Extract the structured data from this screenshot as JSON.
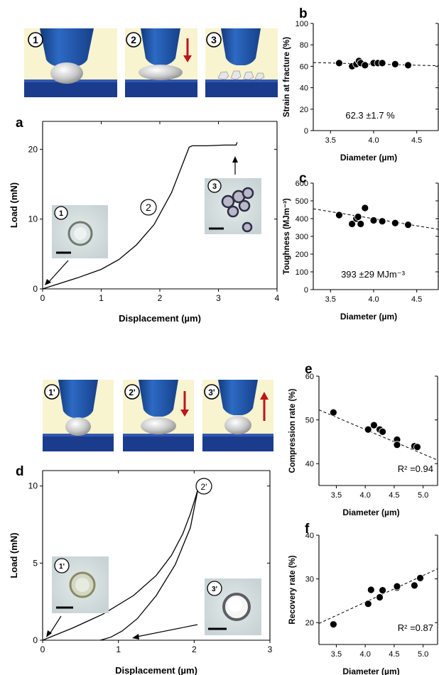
{
  "colors": {
    "tip": "#1e4fa0",
    "tip_dark": "#123a7c",
    "stage": "#1b3c8c",
    "stage_top": "#3358b0",
    "background_panel": "#f8f4cf",
    "arrow": "#c0141c",
    "line": "#000000"
  },
  "panels": {
    "a": "a",
    "b": "b",
    "c": "c",
    "d": "d",
    "e": "e",
    "f": "f"
  },
  "steps_top": [
    "1",
    "2",
    "3"
  ],
  "steps_bottom": [
    "1'",
    "2'",
    "3'"
  ],
  "chart_data": [
    {
      "panel": "a",
      "type": "line",
      "xlabel": "Displacement (µm)",
      "ylabel": "Load (mN)",
      "xlim": [
        0,
        4
      ],
      "ylim": [
        0,
        24
      ],
      "xticks": [
        "0",
        "1",
        "2",
        "3",
        "4"
      ],
      "yticks": [
        "0",
        "10",
        "20"
      ],
      "series": [
        {
          "x": [
            0,
            0.3,
            0.6,
            1.0,
            1.3,
            1.6,
            1.9,
            2.2,
            2.5,
            2.55,
            2.8,
            3.1,
            3.3,
            3.32
          ],
          "y": [
            0,
            0.8,
            1.6,
            2.8,
            4.2,
            6.3,
            9.2,
            13.8,
            20.3,
            20.5,
            20.5,
            20.6,
            20.6,
            21.0
          ]
        }
      ],
      "annotations": [
        "1",
        "2",
        "3"
      ]
    },
    {
      "panel": "b",
      "type": "scatter",
      "xlabel": "Diameter (µm)",
      "ylabel": "Strain at fracture (%)",
      "xlim": [
        3.3,
        4.75
      ],
      "ylim": [
        0,
        100
      ],
      "xticks": [
        "3.5",
        "4.0",
        "4.5"
      ],
      "yticks": [
        "0",
        "20",
        "40",
        "60",
        "80",
        "100"
      ],
      "x": [
        3.6,
        3.75,
        3.8,
        3.83,
        3.85,
        3.9,
        4.0,
        4.05,
        4.1,
        4.25,
        4.4
      ],
      "y": [
        63,
        60,
        62,
        65,
        63,
        61,
        63,
        63,
        63,
        62,
        61
      ],
      "trend": {
        "x": [
          3.3,
          4.75
        ],
        "y": [
          63.5,
          60.5
        ]
      },
      "annotation": "62.3 ±1.7 %"
    },
    {
      "panel": "c",
      "type": "scatter",
      "xlabel": "Diameter (µm)",
      "ylabel": "Toughness (MJm⁻³)",
      "xlim": [
        3.3,
        4.75
      ],
      "ylim": [
        0,
        600
      ],
      "xticks": [
        "3.5",
        "4.0",
        "4.5"
      ],
      "yticks": [
        "0",
        "100",
        "200",
        "300",
        "400",
        "500",
        "600"
      ],
      "x": [
        3.6,
        3.75,
        3.8,
        3.82,
        3.85,
        3.9,
        4.0,
        4.1,
        4.25,
        4.4
      ],
      "y": [
        420,
        370,
        400,
        410,
        370,
        460,
        390,
        385,
        375,
        365
      ],
      "trend": {
        "x": [
          3.3,
          4.75
        ],
        "y": [
          455,
          340
        ]
      },
      "annotation": "393 ±29 MJm⁻³"
    },
    {
      "panel": "d",
      "type": "line",
      "xlabel": "Displacement (µm)",
      "ylabel": "Load (mN)",
      "xlim": [
        0,
        3
      ],
      "ylim": [
        0,
        11
      ],
      "xticks": [
        "0",
        "1",
        "2",
        "3"
      ],
      "yticks": [
        "0",
        "5",
        "10"
      ],
      "series": [
        {
          "name": "",
          "x": [
            0,
            0.4,
            0.8,
            1.2,
            1.5,
            1.7,
            1.85,
            1.95,
            2.02,
            2.05
          ],
          "y": [
            0,
            0.8,
            1.7,
            2.9,
            4.2,
            5.5,
            6.9,
            8.2,
            9.3,
            9.8
          ]
        },
        {
          "name": "",
          "x": [
            2.05,
            1.95,
            1.75,
            1.5,
            1.25,
            1.05,
            0.9,
            0.8,
            0.76
          ],
          "y": [
            9.8,
            7.3,
            4.9,
            2.9,
            1.4,
            0.6,
            0.2,
            0.05,
            0
          ]
        }
      ],
      "annotations": [
        "1'",
        "2'",
        "3'"
      ]
    },
    {
      "panel": "e",
      "type": "scatter",
      "xlabel": "Diameter (µm)",
      "ylabel": "Compression rate (%)",
      "xlim": [
        3.2,
        5.25
      ],
      "ylim": [
        35,
        60
      ],
      "xticks": [
        "3.5",
        "4.0",
        "4.5",
        "5.0"
      ],
      "yticks": [
        "40",
        "50",
        "60"
      ],
      "x": [
        3.45,
        4.05,
        4.15,
        4.25,
        4.3,
        4.55,
        4.55,
        4.85,
        4.9
      ],
      "y": [
        51.7,
        47.8,
        48.8,
        47.8,
        47.3,
        45.5,
        44.3,
        44.0,
        43.8
      ],
      "trend": {
        "x": [
          3.2,
          5.25
        ],
        "y": [
          52.3,
          40.8
        ]
      },
      "annotation": "R² =0.94"
    },
    {
      "panel": "f",
      "type": "scatter",
      "xlabel": "Diameter (µm)",
      "ylabel": "Recovery rate (%)",
      "xlim": [
        3.2,
        5.25
      ],
      "ylim": [
        15,
        40
      ],
      "xticks": [
        "3.5",
        "4.0",
        "4.5",
        "5.0"
      ],
      "yticks": [
        "20",
        "30",
        "40"
      ],
      "x": [
        3.45,
        4.05,
        4.1,
        4.25,
        4.3,
        4.55,
        4.55,
        4.85,
        4.95
      ],
      "y": [
        19.6,
        24.3,
        27.5,
        25.8,
        27.4,
        28.0,
        28.3,
        28.5,
        30.2
      ],
      "trend": {
        "x": [
          3.2,
          5.25
        ],
        "y": [
          19.8,
          32.3
        ]
      },
      "annotation": "R² =0.87"
    }
  ]
}
